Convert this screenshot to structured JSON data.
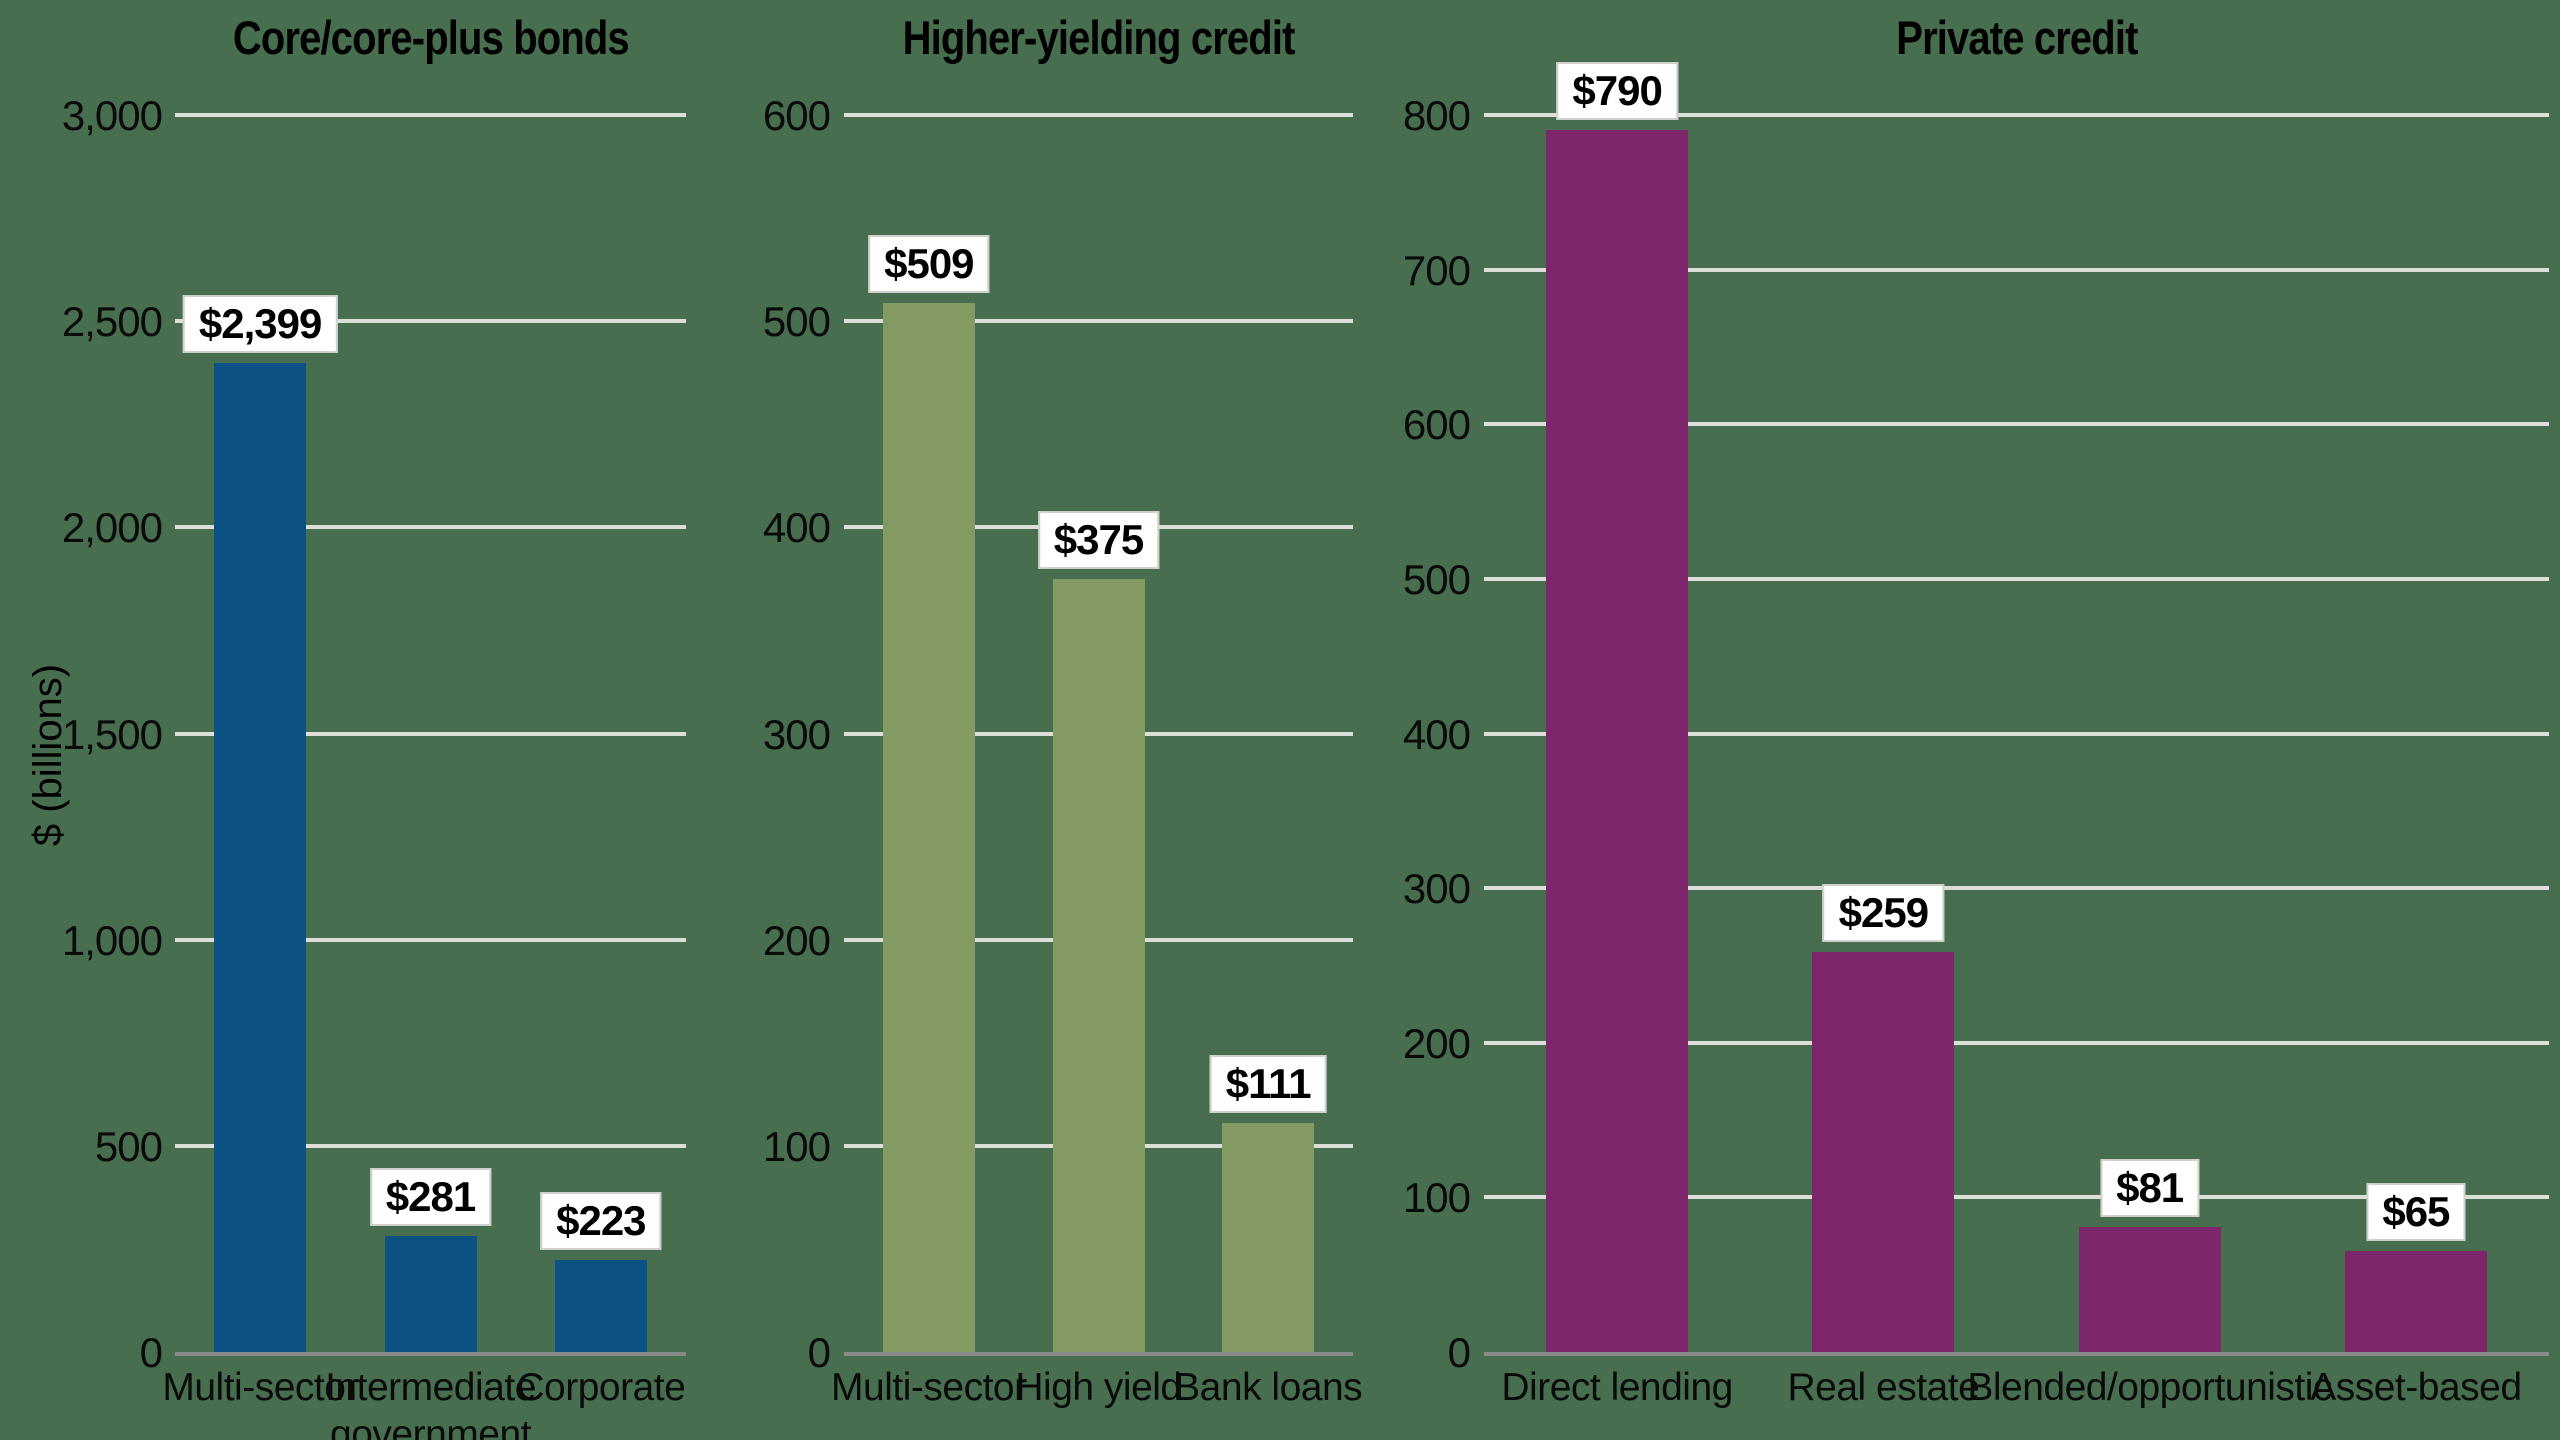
{
  "page": {
    "background_color": "#486E50",
    "gridline_color": "#DCDEDA",
    "axisline_color": "#8A8A8A",
    "text_color": "#000000",
    "value_label_bg": "#FFFFFF",
    "value_label_border": "#CFD2CC"
  },
  "chart_data": [
    {
      "type": "bar",
      "title": "Core/core-plus bonds",
      "ylabel": "$ (billions)",
      "ylim": [
        0,
        3000
      ],
      "ytick_step": 500,
      "ytick_labels": [
        "0",
        "500",
        "1,000",
        "1,500",
        "2,000",
        "2,500",
        "3,000"
      ],
      "categories": [
        "Multi-sector",
        [
          "Intermediate",
          "government"
        ],
        "Corporate"
      ],
      "values": [
        2399,
        281,
        223
      ],
      "value_labels": [
        "$2,399",
        "$281",
        "$223"
      ],
      "bar_color": "#0B5183",
      "grid": true,
      "legend": "none"
    },
    {
      "type": "bar",
      "title": "Higher-yielding credit",
      "ylabel": "",
      "ylim": [
        0,
        600
      ],
      "ytick_step": 100,
      "ytick_labels": [
        "0",
        "100",
        "200",
        "300",
        "400",
        "500",
        "600"
      ],
      "categories": [
        "Multi-sector",
        "High yield",
        "Bank loans"
      ],
      "values": [
        509,
        375,
        111
      ],
      "value_labels": [
        "$509",
        "$375",
        "$111"
      ],
      "bar_color": "#839A63",
      "grid": true,
      "legend": "none"
    },
    {
      "type": "bar",
      "title": "Private credit",
      "ylabel": "",
      "ylim": [
        0,
        800
      ],
      "ytick_step": 100,
      "ytick_labels": [
        "0",
        "100",
        "200",
        "300",
        "400",
        "500",
        "600",
        "700",
        "800"
      ],
      "categories": [
        "Direct lending",
        "Real estate",
        "Blended/opportunistic",
        "Asset-based"
      ],
      "values": [
        790,
        259,
        81,
        65
      ],
      "value_labels": [
        "$790",
        "$259",
        "$81",
        "$65"
      ],
      "bar_color": "#7D266C",
      "grid": true,
      "legend": "none"
    }
  ]
}
